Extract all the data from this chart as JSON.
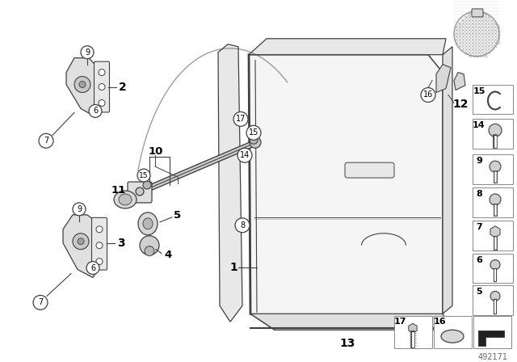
{
  "bg_color": "#ffffff",
  "diagram_number": "492171",
  "line_color": "#404040",
  "label_color": "#000000"
}
